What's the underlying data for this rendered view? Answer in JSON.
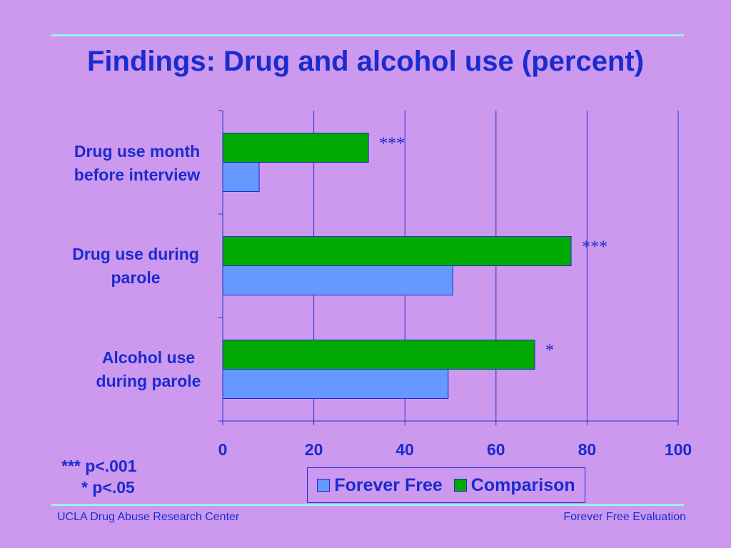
{
  "title": "Findings: Drug and alcohol use (percent)",
  "chart_data": {
    "type": "bar",
    "orientation": "horizontal",
    "categories": [
      "Drug use month before interview",
      "Drug use during parole",
      "Alcohol use during parole"
    ],
    "category_labels": [
      [
        "Drug use month",
        "before interview"
      ],
      [
        "Drug use during",
        "parole"
      ],
      [
        "Alcohol use",
        "during parole"
      ]
    ],
    "series": [
      {
        "name": "Comparison",
        "color": "#00aa00",
        "values": [
          32,
          76.5,
          68.5
        ]
      },
      {
        "name": "Forever Free",
        "color": "#6699ff",
        "values": [
          8,
          50.5,
          49.5
        ]
      }
    ],
    "significance": [
      "***",
      "***",
      "*"
    ],
    "xlim": [
      0,
      100
    ],
    "xticks": [
      0,
      20,
      40,
      60,
      80,
      100
    ],
    "grid": true,
    "legend_position": "bottom"
  },
  "legend": [
    {
      "label": "Forever Free",
      "color": "#6699ff"
    },
    {
      "label": "Comparison",
      "color": "#00aa00"
    }
  ],
  "notes": [
    "*** p<.001",
    "* p<.05"
  ],
  "footer": {
    "left": "UCLA Drug Abuse Research Center",
    "right": "Forever Free Evaluation"
  }
}
